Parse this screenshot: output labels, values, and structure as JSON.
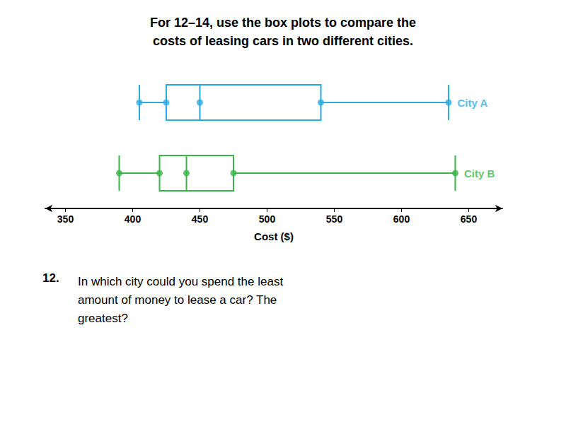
{
  "chart_data": {
    "type": "boxplot",
    "title": "For 12–14, use the box plots to compare the\ncosts of leasing cars in two different cities.",
    "x_label": "Cost ($)",
    "series": [
      {
        "name": "City A",
        "color": "#29ABE2",
        "values": [
          405,
          425,
          450,
          540,
          635
        ]
      },
      {
        "name": "City B",
        "color": "#39B54A",
        "values": [
          390,
          420,
          440,
          475,
          640
        ]
      }
    ],
    "xlim": [
      335,
      675
    ],
    "xticks": [
      350,
      400,
      450,
      500,
      550,
      600,
      650
    ],
    "orientation": "horizontal",
    "grid": false,
    "tick_labels": "x",
    "annotations": [
      "12.",
      "In which city could you spend the least\namount of money to lease a car? The\ngreatest?"
    ]
  }
}
